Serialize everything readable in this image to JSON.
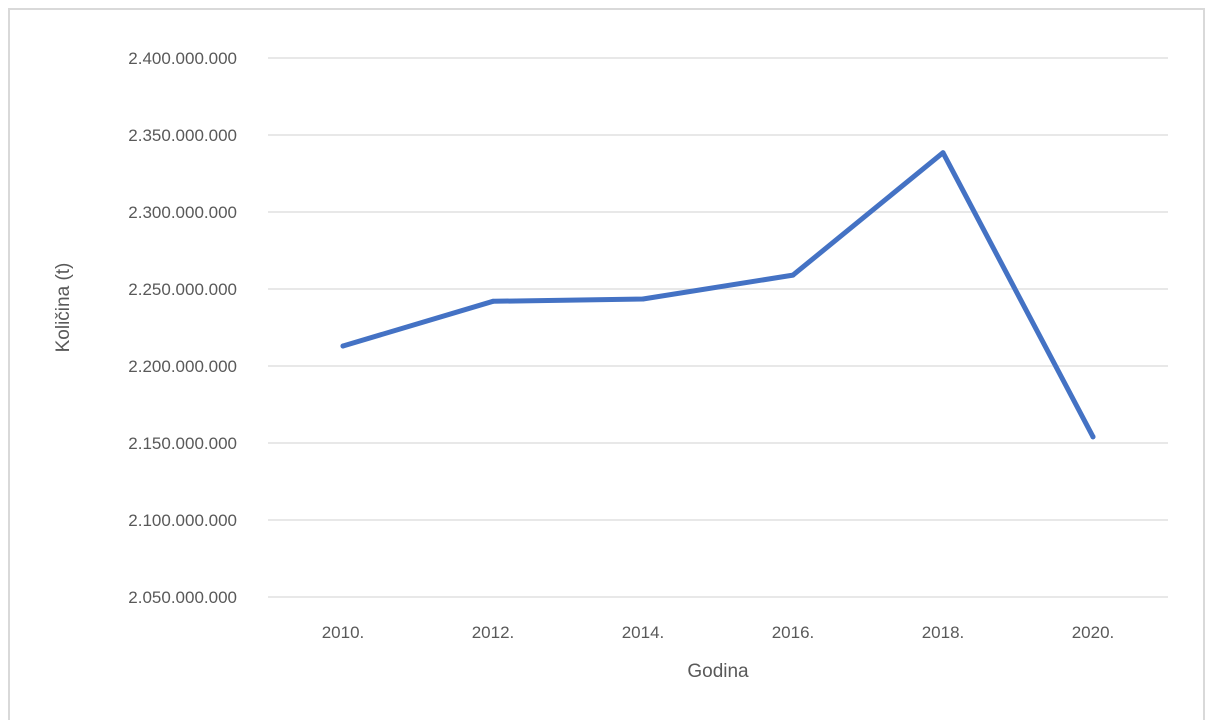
{
  "chart_data": {
    "type": "line",
    "title": "",
    "xlabel": "Godina",
    "ylabel": "Količina (t)",
    "categories": [
      "2010.",
      "2012.",
      "2014.",
      "2016.",
      "2018.",
      "2020."
    ],
    "series": [
      {
        "values": [
          2213000000,
          2242000000,
          2243500000,
          2259000000,
          2338500000,
          2154000000
        ]
      }
    ],
    "ylim": [
      2050000000,
      2400000000
    ],
    "y_ticks": [
      2050000000,
      2100000000,
      2150000000,
      2200000000,
      2250000000,
      2300000000,
      2350000000,
      2400000000
    ],
    "y_tick_labels": [
      "2.050.000.000",
      "2.100.000.000",
      "2.150.000.000",
      "2.200.000.000",
      "2.250.000.000",
      "2.300.000.000",
      "2.350.000.000",
      "2.400.000.000"
    ],
    "grid": true,
    "legend": "none",
    "colors": {
      "line": "#4472c4",
      "grid": "#d9d9d9",
      "text": "#595959"
    }
  }
}
